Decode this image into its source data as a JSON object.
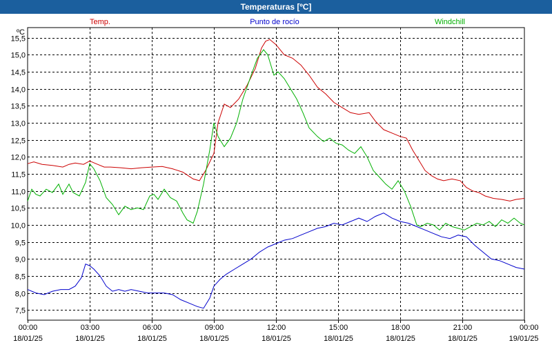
{
  "window": {
    "title": "Temperaturas [ºC]"
  },
  "colors": {
    "title_bar": "#1b5f9e",
    "temp": "#cc0000",
    "dew": "#0000cc",
    "windchill": "#00b000",
    "grid": "#000000"
  },
  "chart_data": {
    "type": "line",
    "title": "Temperaturas [ºC]",
    "ylabel": "ºC",
    "xlabel": "",
    "grid": true,
    "xlim": [
      0,
      24
    ],
    "ylim": [
      7.2,
      15.8
    ],
    "y_ticks": [
      {
        "value": 7.5,
        "label": "7,5"
      },
      {
        "value": 8.0,
        "label": "8,0"
      },
      {
        "value": 8.5,
        "label": "8,5"
      },
      {
        "value": 9.0,
        "label": "9,0"
      },
      {
        "value": 9.5,
        "label": "9,5"
      },
      {
        "value": 10.0,
        "label": "10,0"
      },
      {
        "value": 10.5,
        "label": "10,5"
      },
      {
        "value": 11.0,
        "label": "11,0"
      },
      {
        "value": 11.5,
        "label": "11,5"
      },
      {
        "value": 12.0,
        "label": "12,0"
      },
      {
        "value": 12.5,
        "label": "12,5"
      },
      {
        "value": 13.0,
        "label": "13,0"
      },
      {
        "value": 13.5,
        "label": "13,5"
      },
      {
        "value": 14.0,
        "label": "14,0"
      },
      {
        "value": 14.5,
        "label": "14,5"
      },
      {
        "value": 15.0,
        "label": "15,0"
      },
      {
        "value": 15.5,
        "label": "15,5"
      }
    ],
    "x_ticks": [
      {
        "value": 0,
        "time": "00:00",
        "date": "18/01/25"
      },
      {
        "value": 3,
        "time": "03:00",
        "date": "18/01/25"
      },
      {
        "value": 6,
        "time": "06:00",
        "date": "18/01/25"
      },
      {
        "value": 9,
        "time": "09:00",
        "date": "18/01/25"
      },
      {
        "value": 12,
        "time": "12:00",
        "date": "18/01/25"
      },
      {
        "value": 15,
        "time": "15:00",
        "date": "18/01/25"
      },
      {
        "value": 18,
        "time": "18:00",
        "date": "18/01/25"
      },
      {
        "value": 21,
        "time": "21:00",
        "date": "18/01/25"
      },
      {
        "value": 24,
        "time": "00:00",
        "date": "19/01/25"
      }
    ],
    "legend": [
      {
        "name": "Temp.",
        "key": "temp"
      },
      {
        "name": "Punto de rocío",
        "key": "dew"
      },
      {
        "name": "Windchill",
        "key": "windchill"
      }
    ],
    "series": [
      {
        "name": "Temp.",
        "key": "temp",
        "x": [
          0,
          0.3,
          0.7,
          1.2,
          1.7,
          2.0,
          2.3,
          2.7,
          3.0,
          3.3,
          3.7,
          4.0,
          4.5,
          5.0,
          5.5,
          6.0,
          6.5,
          7.0,
          7.5,
          8.0,
          8.3,
          8.6,
          9.0,
          9.2,
          9.5,
          9.8,
          10.2,
          10.6,
          11.0,
          11.3,
          11.5,
          11.7,
          12.0,
          12.4,
          12.8,
          13.2,
          13.6,
          14.0,
          14.4,
          14.8,
          15.2,
          15.6,
          16.0,
          16.5,
          16.8,
          17.2,
          17.6,
          18.0,
          18.3,
          18.6,
          18.9,
          19.2,
          19.5,
          19.8,
          20.1,
          20.5,
          20.9,
          21.2,
          21.5,
          21.8,
          22.1,
          22.5,
          22.9,
          23.3,
          23.6,
          24.0
        ],
        "values": [
          11.8,
          11.85,
          11.78,
          11.75,
          11.7,
          11.78,
          11.82,
          11.78,
          11.88,
          11.8,
          11.7,
          11.7,
          11.68,
          11.65,
          11.68,
          11.7,
          11.72,
          11.65,
          11.55,
          11.35,
          11.3,
          11.6,
          12.1,
          13.0,
          13.55,
          13.45,
          13.7,
          14.1,
          14.6,
          15.2,
          15.4,
          15.45,
          15.3,
          15.0,
          14.9,
          14.7,
          14.4,
          14.05,
          13.85,
          13.6,
          13.45,
          13.3,
          13.25,
          13.3,
          13.05,
          12.8,
          12.7,
          12.6,
          12.55,
          12.2,
          11.9,
          11.6,
          11.45,
          11.35,
          11.3,
          11.35,
          11.3,
          11.1,
          11.0,
          10.95,
          10.85,
          10.78,
          10.75,
          10.7,
          10.75,
          10.78
        ]
      },
      {
        "name": "Punto de rocío",
        "key": "dew",
        "x": [
          0,
          0.4,
          0.8,
          1.2,
          1.6,
          2.0,
          2.3,
          2.6,
          2.8,
          3.0,
          3.2,
          3.5,
          3.8,
          4.1,
          4.4,
          4.7,
          5.0,
          5.4,
          5.8,
          6.2,
          6.6,
          7.0,
          7.4,
          7.8,
          8.2,
          8.5,
          8.8,
          9.0,
          9.3,
          9.6,
          10.0,
          10.4,
          10.8,
          11.2,
          11.6,
          12.0,
          12.4,
          12.8,
          13.2,
          13.6,
          14.0,
          14.4,
          14.8,
          15.2,
          15.6,
          16.0,
          16.4,
          16.8,
          17.2,
          17.6,
          18.0,
          18.4,
          18.8,
          19.2,
          19.6,
          20.0,
          20.4,
          20.8,
          21.2,
          21.6,
          22.0,
          22.4,
          22.8,
          23.2,
          23.6,
          24.0
        ],
        "values": [
          8.1,
          8.0,
          7.95,
          8.05,
          8.1,
          8.1,
          8.2,
          8.45,
          8.85,
          8.8,
          8.7,
          8.5,
          8.2,
          8.05,
          8.1,
          8.05,
          8.1,
          8.05,
          8.0,
          8.0,
          8.0,
          7.95,
          7.8,
          7.7,
          7.6,
          7.55,
          7.85,
          8.2,
          8.4,
          8.55,
          8.7,
          8.85,
          9.0,
          9.2,
          9.35,
          9.45,
          9.55,
          9.6,
          9.7,
          9.8,
          9.9,
          9.95,
          10.05,
          10.0,
          10.1,
          10.2,
          10.1,
          10.25,
          10.35,
          10.2,
          10.1,
          10.05,
          9.95,
          9.85,
          9.75,
          9.65,
          9.6,
          9.7,
          9.65,
          9.4,
          9.2,
          9.0,
          8.95,
          8.85,
          8.75,
          8.7
        ]
      },
      {
        "name": "Windchill",
        "key": "windchill",
        "x": [
          0,
          0.2,
          0.4,
          0.6,
          0.9,
          1.2,
          1.5,
          1.7,
          2.0,
          2.2,
          2.5,
          2.8,
          3.0,
          3.2,
          3.5,
          3.8,
          4.1,
          4.4,
          4.7,
          5.0,
          5.3,
          5.6,
          5.9,
          6.1,
          6.3,
          6.6,
          6.9,
          7.2,
          7.5,
          7.7,
          8.0,
          8.2,
          8.5,
          8.8,
          9.0,
          9.2,
          9.5,
          9.8,
          10.1,
          10.4,
          10.8,
          11.1,
          11.4,
          11.6,
          11.9,
          12.1,
          12.4,
          12.7,
          13.0,
          13.3,
          13.6,
          14.0,
          14.3,
          14.6,
          14.9,
          15.2,
          15.5,
          15.8,
          16.1,
          16.4,
          16.7,
          17.0,
          17.3,
          17.6,
          17.9,
          18.2,
          18.5,
          18.8,
          19.0,
          19.3,
          19.6,
          19.9,
          20.2,
          20.5,
          20.8,
          21.1,
          21.4,
          21.7,
          22.0,
          22.3,
          22.6,
          22.9,
          23.2,
          23.5,
          23.8,
          24.0
        ],
        "values": [
          10.7,
          11.05,
          10.9,
          10.85,
          11.05,
          10.95,
          11.2,
          10.9,
          11.2,
          10.95,
          10.85,
          11.25,
          11.8,
          11.65,
          11.3,
          10.8,
          10.6,
          10.3,
          10.55,
          10.45,
          10.5,
          10.45,
          10.85,
          10.9,
          10.75,
          11.05,
          10.8,
          10.7,
          10.35,
          10.15,
          10.05,
          10.4,
          11.2,
          12.2,
          13.0,
          12.6,
          12.3,
          12.55,
          13.0,
          13.7,
          14.4,
          14.9,
          15.15,
          15.0,
          14.4,
          14.5,
          14.3,
          14.0,
          13.7,
          13.3,
          12.85,
          12.6,
          12.45,
          12.55,
          12.4,
          12.35,
          12.2,
          12.1,
          12.3,
          12.0,
          11.6,
          11.4,
          11.2,
          11.05,
          11.3,
          11.0,
          10.55,
          10.0,
          9.95,
          10.05,
          10.0,
          9.85,
          10.05,
          9.95,
          9.9,
          9.85,
          9.95,
          10.05,
          10.0,
          10.1,
          9.95,
          10.15,
          10.05,
          10.2,
          10.05,
          10.0
        ]
      }
    ]
  }
}
